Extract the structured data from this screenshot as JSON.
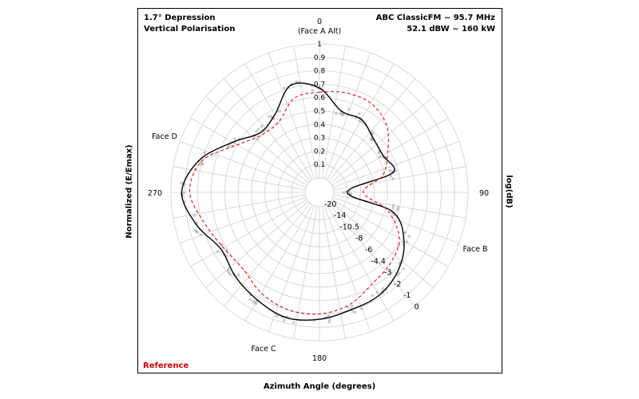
{
  "header": {
    "left_line1": "1.7° Depression",
    "left_line2": "Vertical Polarisation",
    "right_line1": "ABC ClassicFM ~ 95.7 MHz",
    "right_line2": "52.1 dBW ~ 160 kW"
  },
  "legend": {
    "reference_label": "Reference",
    "reference_color": "#d40000"
  },
  "axes": {
    "xlabel": "Azimuth Angle (degrees)",
    "ylabel_left": "Normalized (E/Emax)",
    "ylabel_right": "log(dB)"
  },
  "colors": {
    "measured": "#000000",
    "reference": "#e01010",
    "scatter": "#9a9a9a",
    "grid": "#cfcfcf"
  },
  "chart_data": {
    "type": "polar",
    "title": "",
    "angular_axis": {
      "unit": "degrees",
      "direction": "clockwise",
      "zero": "top",
      "gridline_step": 10,
      "labels": [
        {
          "angle": 0,
          "text": "0"
        },
        {
          "angle": 0,
          "text": "(Face A Alt)"
        },
        {
          "angle": 90,
          "text": "90"
        },
        {
          "angle": 180,
          "text": "180"
        },
        {
          "angle": 270,
          "text": "270"
        },
        {
          "angle": 110,
          "text": "Face B"
        },
        {
          "angle": 200,
          "text": "Face C"
        },
        {
          "angle": 300,
          "text": "Face D"
        }
      ]
    },
    "radial_axis": {
      "range": [
        0,
        1
      ],
      "ticks": [
        "0.1",
        "0.2",
        "0.3",
        "0.4",
        "0.5",
        "0.6",
        "0.7",
        "0.8",
        "0.9",
        "1"
      ],
      "grid": true
    },
    "db_axis": {
      "ticks": [
        "-20",
        "-14",
        "-10.5",
        "-8",
        "-6",
        "-4.4",
        "-3",
        "-2",
        "-1",
        "0"
      ]
    },
    "series": [
      {
        "name": "",
        "style": "solid",
        "angles": [
          0,
          15,
          30,
          45,
          60,
          75,
          90,
          105,
          120,
          135,
          150,
          165,
          180,
          195,
          210,
          225,
          240,
          255,
          270,
          285,
          300,
          315,
          330,
          345
        ],
        "values": [
          0.67,
          0.52,
          0.52,
          0.46,
          0.44,
          0.46,
          0.1,
          0.46,
          0.62,
          0.72,
          0.78,
          0.8,
          0.84,
          0.86,
          0.82,
          0.78,
          0.74,
          0.84,
          0.92,
          0.82,
          0.64,
          0.52,
          0.56,
          0.72
        ]
      },
      {
        "name": "Reference",
        "style": "dashed",
        "angles": [
          0,
          15,
          30,
          45,
          60,
          75,
          90,
          105,
          120,
          135,
          150,
          165,
          180,
          195,
          210,
          225,
          240,
          255,
          270,
          285,
          300,
          315,
          330,
          345
        ],
        "values": [
          0.64,
          0.66,
          0.66,
          0.6,
          0.48,
          0.38,
          0.22,
          0.42,
          0.58,
          0.64,
          0.68,
          0.76,
          0.8,
          0.8,
          0.76,
          0.7,
          0.72,
          0.78,
          0.86,
          0.8,
          0.6,
          0.5,
          0.5,
          0.62
        ]
      }
    ]
  }
}
